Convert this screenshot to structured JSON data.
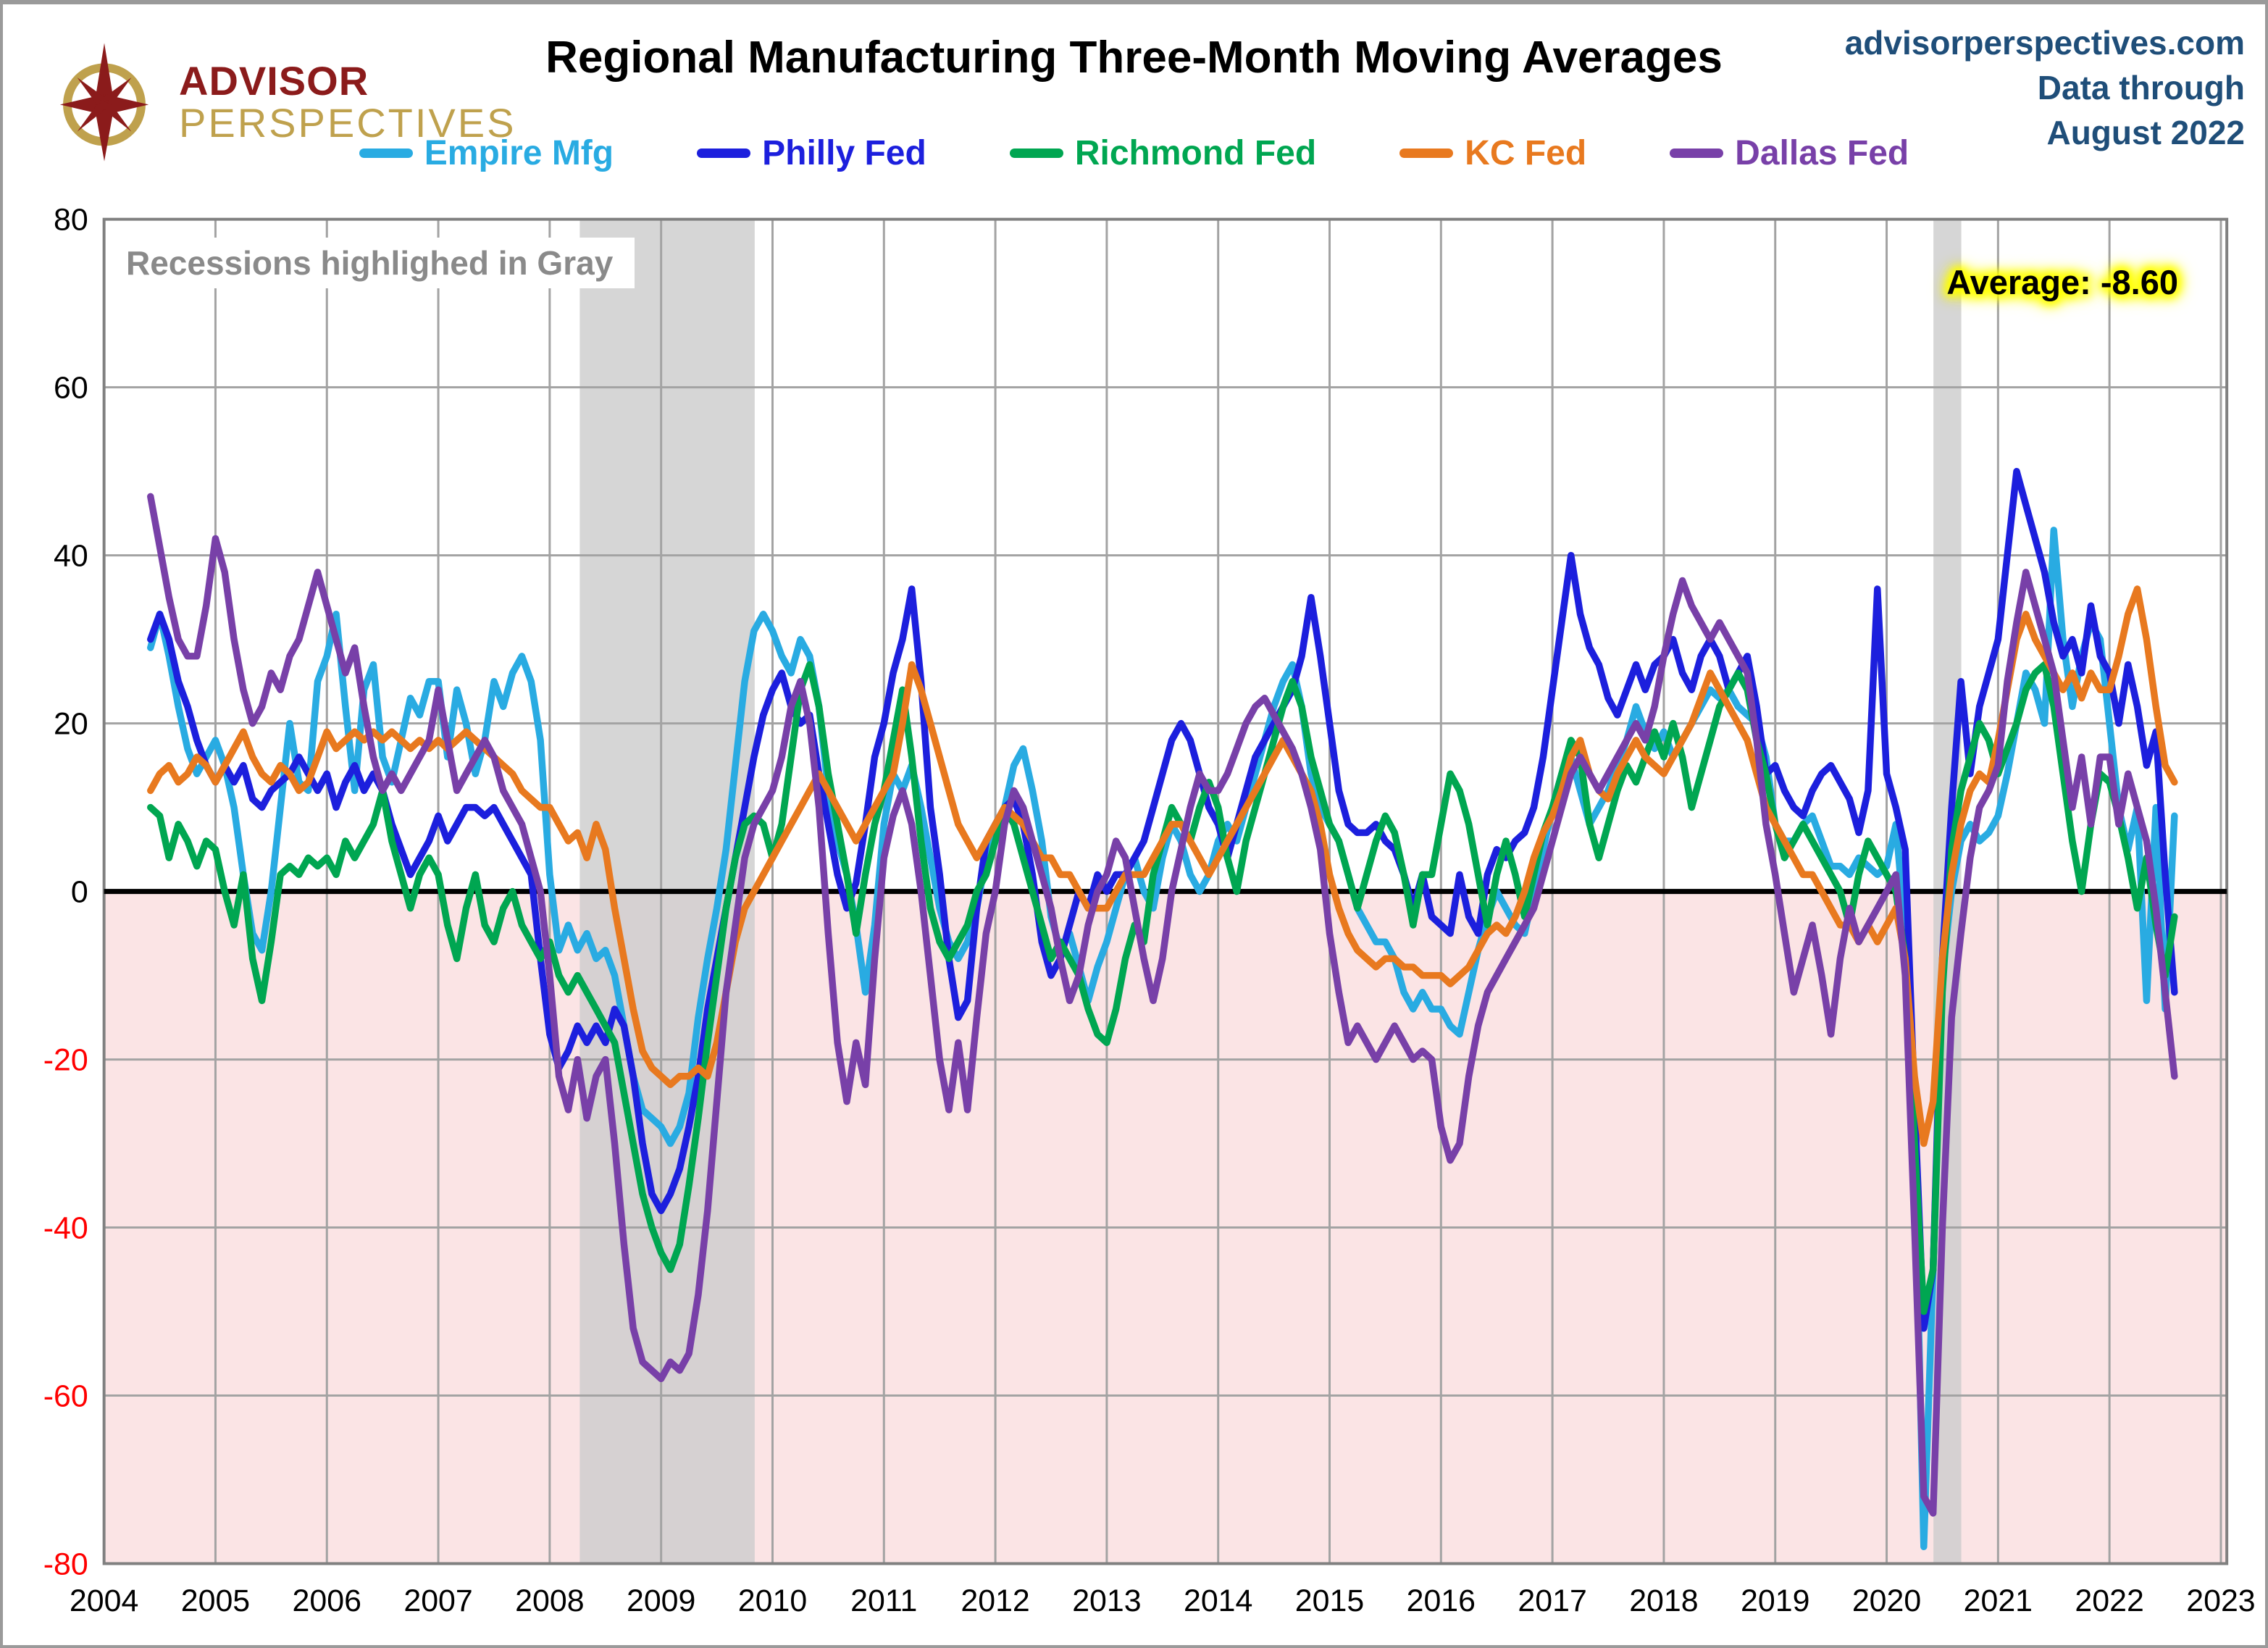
{
  "header": {
    "logo": {
      "line1": "ADVISOR",
      "line2": "PERSPECTIVES"
    },
    "title": "Regional Manufacturing Three-Month Moving Averages",
    "info_lines": [
      "advisorperspectives.com",
      "Data through",
      "August 2022"
    ]
  },
  "annotations": {
    "recession_note": "Recessions highlighed in Gray",
    "average_label": "Average: -8.60"
  },
  "colors": {
    "negative_fill": "#fbe4e5",
    "recession_band": "#cdcdcd",
    "gridline": "#a3a3a3",
    "plot_border": "#808080",
    "zero_line": "#000000",
    "negative_tick": "#ff0000",
    "positive_tick": "#000000",
    "header_info": "#1f4e79",
    "logo_red": "#8b1b1b",
    "logo_gold": "#bfa14d"
  },
  "chart_data": {
    "type": "line",
    "title": "Regional Manufacturing Three-Month Moving Averages",
    "xlabel": "",
    "ylabel": "",
    "legend_position": "top",
    "grid": true,
    "x_tick_years": [
      2004,
      2005,
      2006,
      2007,
      2008,
      2009,
      2010,
      2011,
      2012,
      2013,
      2014,
      2015,
      2016,
      2017,
      2018,
      2019,
      2020,
      2021,
      2022,
      2023
    ],
    "y_axis": {
      "min": -80,
      "max": 80,
      "step": 20
    },
    "start": {
      "year": 2004,
      "month": 6
    },
    "frequency": "monthly",
    "end_label": "August 2022",
    "recession_bands": [
      [
        2008.27,
        2009.84
      ],
      [
        2020.42,
        2020.67
      ]
    ],
    "series": [
      {
        "name": "Empire Mfg",
        "color": "#29abe2",
        "values": [
          29,
          33,
          28,
          22,
          17,
          14,
          16,
          18,
          15,
          10,
          2,
          -5,
          -7,
          0,
          10,
          20,
          13,
          12,
          25,
          28,
          33,
          22,
          12,
          24,
          27,
          16,
          13,
          18,
          23,
          21,
          25,
          25,
          16,
          24,
          20,
          14,
          18,
          25,
          22,
          26,
          28,
          25,
          18,
          2,
          -7,
          -4,
          -7,
          -5,
          -8,
          -7,
          -10,
          -16,
          -22,
          -26,
          -27,
          -28,
          -30,
          -28,
          -24,
          -15,
          -8,
          -2,
          5,
          15,
          25,
          31,
          33,
          31,
          28,
          26,
          30,
          28,
          22,
          12,
          6,
          2,
          -4,
          -12,
          -4,
          8,
          14,
          12,
          15,
          10,
          4,
          -2,
          -6,
          -8,
          -6,
          -2,
          4,
          8,
          10,
          15,
          17,
          12,
          6,
          -3,
          -7,
          -5,
          -9,
          -13,
          -9,
          -6,
          -2,
          2,
          4,
          0,
          -2,
          4,
          8,
          6,
          2,
          0,
          2,
          6,
          8,
          6,
          10,
          14,
          18,
          22,
          25,
          27,
          22,
          14,
          10,
          8,
          6,
          2,
          -2,
          -4,
          -6,
          -6,
          -8,
          -12,
          -14,
          -12,
          -14,
          -14,
          -16,
          -17,
          -12,
          -7,
          -3,
          0,
          -2,
          -4,
          -5,
          0,
          5,
          10,
          14,
          16,
          12,
          8,
          10,
          12,
          15,
          18,
          22,
          19,
          17,
          19,
          16,
          18,
          20,
          22,
          24,
          23,
          24,
          22,
          21,
          20,
          16,
          8,
          6,
          6,
          8,
          9,
          6,
          3,
          3,
          2,
          4,
          3,
          2,
          3,
          8,
          -5,
          -30,
          -78,
          -45,
          -10,
          0,
          6,
          8,
          6,
          7,
          9,
          14,
          20,
          26,
          24,
          20,
          43,
          30,
          22,
          28,
          32,
          30,
          20,
          10,
          5,
          10,
          -13,
          10,
          -14,
          9
        ]
      },
      {
        "name": "Philly Fed",
        "color": "#1c1fdd",
        "values": [
          30,
          33,
          30,
          25,
          22,
          18,
          15,
          13,
          15,
          13,
          15,
          11,
          10,
          12,
          13,
          14,
          16,
          14,
          12,
          14,
          10,
          13,
          15,
          12,
          14,
          12,
          8,
          5,
          2,
          4,
          6,
          9,
          6,
          8,
          10,
          10,
          9,
          10,
          8,
          6,
          4,
          2,
          -8,
          -17,
          -21,
          -19,
          -16,
          -18,
          -16,
          -18,
          -14,
          -16,
          -22,
          -30,
          -36,
          -38,
          -36,
          -33,
          -28,
          -22,
          -14,
          -8,
          -2,
          4,
          10,
          16,
          21,
          24,
          26,
          22,
          20,
          21,
          14,
          8,
          2,
          -2,
          1,
          8,
          16,
          20,
          26,
          30,
          36,
          25,
          10,
          2,
          -8,
          -15,
          -13,
          -2,
          6,
          8,
          10,
          11,
          8,
          2,
          -6,
          -10,
          -8,
          -4,
          0,
          -2,
          2,
          0,
          2,
          2,
          4,
          6,
          10,
          14,
          18,
          20,
          18,
          14,
          10,
          8,
          4,
          8,
          12,
          16,
          18,
          20,
          22,
          24,
          28,
          35,
          28,
          20,
          12,
          8,
          7,
          7,
          8,
          6,
          5,
          2,
          -2,
          2,
          -3,
          -4,
          -5,
          2,
          -3,
          -5,
          2,
          5,
          4,
          6,
          7,
          10,
          16,
          24,
          32,
          40,
          33,
          29,
          27,
          23,
          21,
          24,
          27,
          24,
          27,
          28,
          30,
          26,
          24,
          28,
          30,
          28,
          24,
          26,
          28,
          22,
          14,
          15,
          12,
          10,
          9,
          12,
          14,
          15,
          13,
          11,
          7,
          12,
          36,
          14,
          10,
          5,
          -25,
          -52,
          -45,
          -8,
          10,
          25,
          14,
          22,
          26,
          30,
          40,
          50,
          46,
          42,
          38,
          32,
          28,
          30,
          26,
          34,
          28,
          26,
          20,
          27,
          22,
          15,
          19,
          2,
          -12
        ]
      },
      {
        "name": "Richmond Fed",
        "color": "#00a651",
        "values": [
          10,
          9,
          4,
          8,
          6,
          3,
          6,
          5,
          0,
          -4,
          2,
          -8,
          -13,
          -6,
          2,
          3,
          2,
          4,
          3,
          4,
          2,
          6,
          4,
          6,
          8,
          12,
          6,
          2,
          -2,
          2,
          4,
          2,
          -4,
          -8,
          -2,
          2,
          -4,
          -6,
          -2,
          0,
          -4,
          -6,
          -8,
          -6,
          -10,
          -12,
          -10,
          -12,
          -14,
          -16,
          -18,
          -24,
          -30,
          -36,
          -40,
          -43,
          -45,
          -42,
          -35,
          -27,
          -18,
          -10,
          -2,
          4,
          8,
          9,
          8,
          4,
          8,
          16,
          24,
          27,
          22,
          14,
          8,
          2,
          -5,
          2,
          8,
          12,
          18,
          24,
          16,
          6,
          -2,
          -6,
          -8,
          -6,
          -4,
          0,
          2,
          6,
          10,
          8,
          4,
          0,
          -4,
          -8,
          -6,
          -8,
          -10,
          -14,
          -17,
          -18,
          -14,
          -8,
          -4,
          -6,
          2,
          6,
          10,
          8,
          6,
          10,
          13,
          10,
          4,
          0,
          6,
          10,
          14,
          18,
          22,
          25,
          22,
          16,
          12,
          8,
          6,
          2,
          -2,
          2,
          6,
          9,
          7,
          2,
          -4,
          2,
          2,
          8,
          14,
          12,
          8,
          2,
          -4,
          2,
          6,
          2,
          -3,
          2,
          7,
          10,
          14,
          18,
          16,
          8,
          4,
          8,
          12,
          15,
          13,
          16,
          19,
          16,
          20,
          16,
          10,
          14,
          18,
          22,
          24,
          26,
          24,
          18,
          14,
          8,
          4,
          6,
          8,
          6,
          4,
          2,
          0,
          -4,
          2,
          6,
          4,
          2,
          0,
          -8,
          -30,
          -50,
          -45,
          -12,
          5,
          12,
          16,
          20,
          18,
          14,
          17,
          20,
          24,
          26,
          27,
          22,
          14,
          6,
          0,
          8,
          14,
          13,
          9,
          4,
          -2,
          4,
          -4,
          -10,
          -3
        ]
      },
      {
        "name": "KC Fed",
        "color": "#e8791f",
        "values": [
          12,
          14,
          15,
          13,
          14,
          16,
          15,
          13,
          15,
          17,
          19,
          16,
          14,
          13,
          15,
          14,
          12,
          13,
          16,
          19,
          17,
          18,
          19,
          18,
          19,
          18,
          19,
          18,
          17,
          18,
          17,
          18,
          17,
          18,
          19,
          18,
          17,
          16,
          15,
          14,
          12,
          11,
          10,
          10,
          8,
          6,
          7,
          4,
          8,
          5,
          -2,
          -8,
          -14,
          -19,
          -21,
          -22,
          -23,
          -22,
          -22,
          -21,
          -22,
          -18,
          -12,
          -6,
          -2,
          0,
          2,
          4,
          6,
          8,
          10,
          12,
          14,
          12,
          10,
          8,
          6,
          8,
          10,
          12,
          14,
          20,
          27,
          24,
          20,
          16,
          12,
          8,
          6,
          4,
          6,
          8,
          10,
          9,
          8,
          6,
          4,
          4,
          2,
          2,
          0,
          -2,
          -2,
          -2,
          0,
          2,
          2,
          2,
          4,
          6,
          8,
          8,
          6,
          4,
          2,
          4,
          6,
          8,
          10,
          12,
          14,
          16,
          18,
          16,
          14,
          12,
          8,
          2,
          -2,
          -5,
          -7,
          -8,
          -9,
          -8,
          -8,
          -9,
          -9,
          -10,
          -10,
          -10,
          -11,
          -10,
          -9,
          -7,
          -5,
          -4,
          -5,
          -3,
          0,
          4,
          7,
          9,
          12,
          16,
          18,
          14,
          12,
          11,
          14,
          16,
          18,
          16,
          15,
          14,
          16,
          18,
          20,
          23,
          26,
          24,
          22,
          20,
          18,
          14,
          10,
          8,
          6,
          4,
          2,
          2,
          0,
          -2,
          -4,
          -4,
          -6,
          -4,
          -6,
          -4,
          -2,
          -8,
          -22,
          -30,
          -25,
          -8,
          2,
          8,
          12,
          14,
          13,
          18,
          24,
          30,
          33,
          30,
          28,
          26,
          24,
          26,
          23,
          26,
          24,
          24,
          28,
          33,
          36,
          30,
          22,
          15,
          13
        ]
      },
      {
        "name": "Dallas Fed",
        "color": "#7840a8",
        "values": [
          47,
          41,
          35,
          30,
          28,
          28,
          34,
          42,
          38,
          30,
          24,
          20,
          22,
          26,
          24,
          28,
          30,
          34,
          38,
          34,
          30,
          26,
          29,
          22,
          16,
          12,
          14,
          12,
          14,
          16,
          18,
          24,
          18,
          12,
          14,
          16,
          18,
          16,
          12,
          10,
          8,
          4,
          0,
          -10,
          -22,
          -26,
          -20,
          -27,
          -22,
          -20,
          -30,
          -42,
          -52,
          -56,
          -57,
          -58,
          -56,
          -57,
          -55,
          -48,
          -38,
          -25,
          -12,
          -4,
          4,
          8,
          10,
          12,
          16,
          22,
          25,
          20,
          10,
          -5,
          -18,
          -25,
          -18,
          -23,
          -8,
          4,
          9,
          12,
          8,
          0,
          -10,
          -20,
          -26,
          -18,
          -26,
          -15,
          -5,
          0,
          8,
          12,
          10,
          6,
          2,
          -2,
          -8,
          -13,
          -10,
          -4,
          0,
          2,
          6,
          4,
          -2,
          -8,
          -13,
          -8,
          0,
          5,
          10,
          14,
          12,
          12,
          14,
          17,
          20,
          22,
          23,
          21,
          19,
          17,
          14,
          10,
          5,
          -5,
          -12,
          -18,
          -16,
          -18,
          -20,
          -18,
          -16,
          -18,
          -20,
          -19,
          -20,
          -28,
          -32,
          -30,
          -22,
          -16,
          -12,
          -10,
          -8,
          -6,
          -4,
          -2,
          2,
          6,
          10,
          14,
          16,
          14,
          12,
          14,
          16,
          18,
          20,
          18,
          22,
          28,
          33,
          37,
          34,
          32,
          30,
          32,
          30,
          28,
          26,
          18,
          8,
          2,
          -5,
          -12,
          -8,
          -4,
          -10,
          -17,
          -8,
          -2,
          -6,
          -4,
          -2,
          0,
          2,
          -10,
          -40,
          -72,
          -74,
          -40,
          -15,
          -5,
          4,
          10,
          12,
          15,
          25,
          32,
          38,
          34,
          30,
          26,
          18,
          10,
          16,
          8,
          16,
          16,
          8,
          14,
          10,
          6,
          -2,
          -12,
          -22
        ]
      }
    ]
  }
}
